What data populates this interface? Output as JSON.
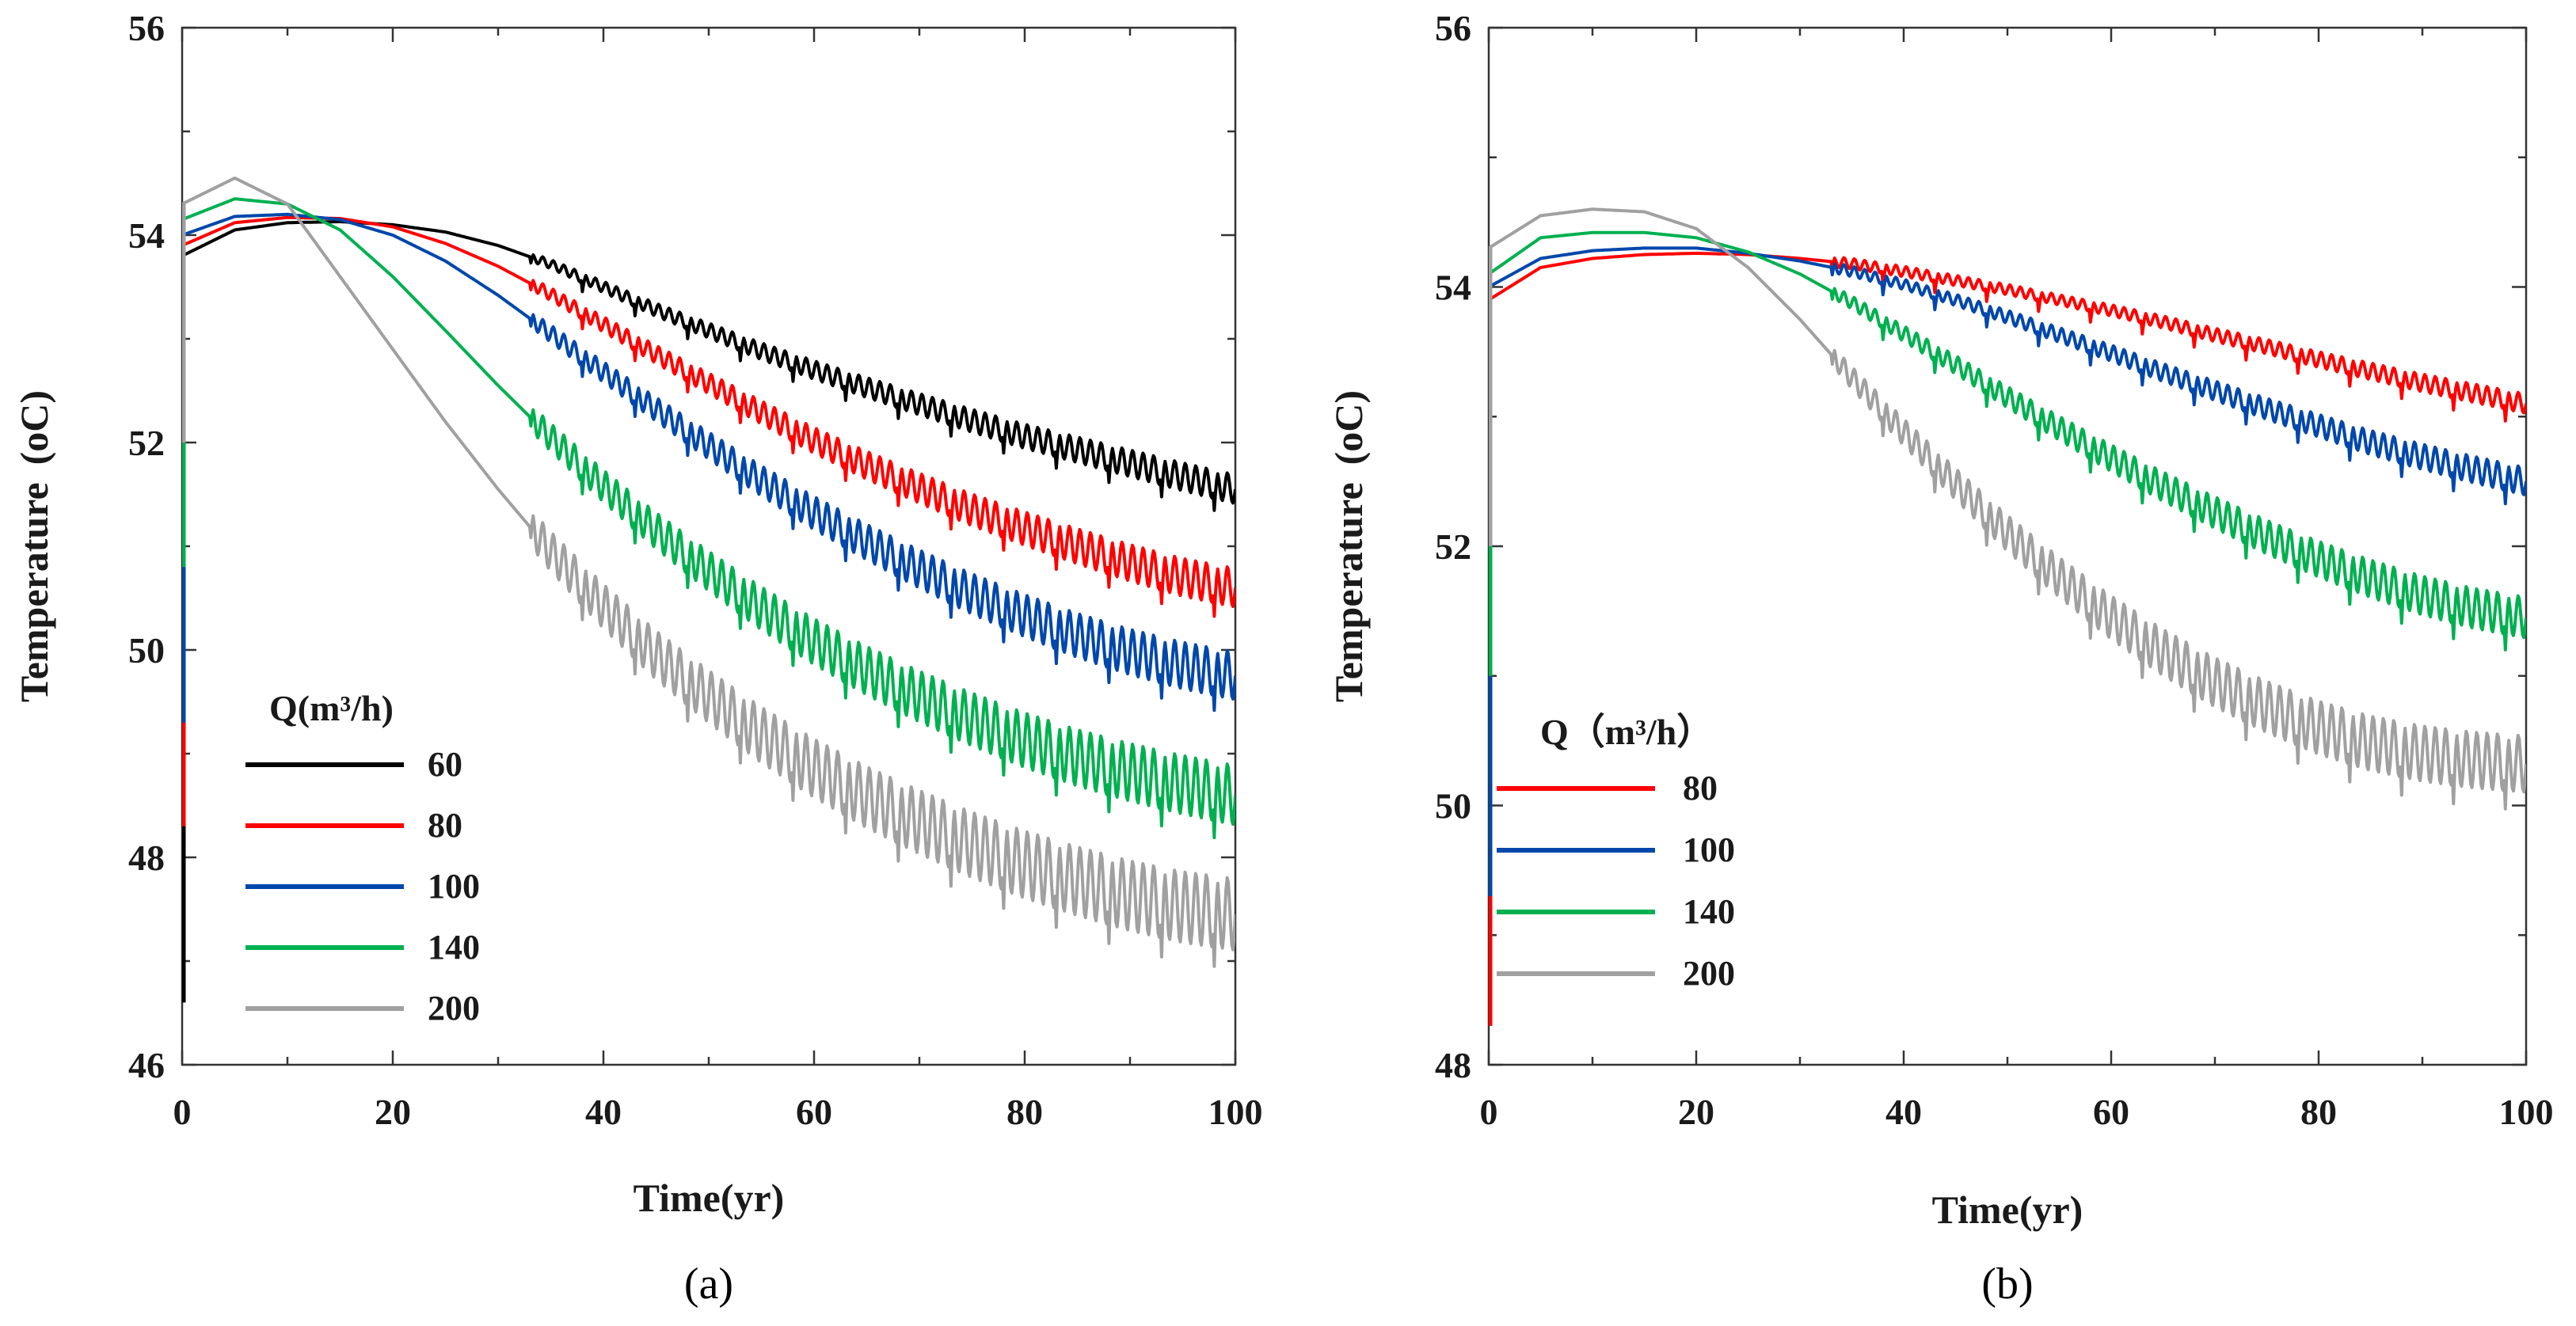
{
  "chart_data": [
    {
      "type": "line",
      "panel_label": "(a)",
      "xlabel": "Time(yr)",
      "ylabel": "Temperature",
      "ylabel_unit": "(oC)",
      "xlim": [
        0,
        100
      ],
      "ylim": [
        46,
        56
      ],
      "xticks": [
        0,
        20,
        40,
        60,
        80,
        100
      ],
      "yticks": [
        46,
        48,
        50,
        52,
        54,
        56
      ],
      "grid": false,
      "legend_title": "Q(m³/h)",
      "legend_position": "lower-left",
      "x": [
        0,
        5,
        10,
        15,
        20,
        25,
        30,
        35,
        40,
        45,
        50,
        55,
        60,
        65,
        70,
        75,
        80,
        85,
        90,
        95,
        100
      ],
      "series": [
        {
          "name": "60",
          "color": "#000000",
          "start_value": 46.6,
          "values": [
            53.8,
            54.05,
            54.12,
            54.13,
            54.1,
            54.03,
            53.9,
            53.72,
            53.5,
            53.28,
            53.08,
            52.88,
            52.7,
            52.53,
            52.37,
            52.21,
            52.06,
            51.93,
            51.8,
            51.67,
            51.55
          ]
        },
        {
          "name": "80",
          "color": "#ff0000",
          "start_value": 48.3,
          "values": [
            53.9,
            54.12,
            54.17,
            54.16,
            54.08,
            53.92,
            53.7,
            53.43,
            53.14,
            52.85,
            52.57,
            52.29,
            52.02,
            51.78,
            51.56,
            51.35,
            51.17,
            51.0,
            50.84,
            50.7,
            50.6
          ]
        },
        {
          "name": "100",
          "color": "#0047ab",
          "start_value": 49.3,
          "values": [
            54.0,
            54.18,
            54.2,
            54.15,
            54.0,
            53.75,
            53.42,
            53.05,
            52.68,
            52.32,
            51.97,
            51.63,
            51.32,
            51.04,
            50.78,
            50.54,
            50.33,
            50.14,
            49.98,
            49.85,
            49.75
          ]
        },
        {
          "name": "140",
          "color": "#00b050",
          "start_value": 50.8,
          "values": [
            54.15,
            54.35,
            54.3,
            54.05,
            53.6,
            53.08,
            52.55,
            52.05,
            51.58,
            51.15,
            50.76,
            50.4,
            50.08,
            49.8,
            49.55,
            49.33,
            49.13,
            48.96,
            48.82,
            48.7,
            48.6
          ]
        },
        {
          "name": "200",
          "color": "#a0a0a0",
          "start_value": 52.0,
          "values": [
            54.3,
            54.55,
            54.3,
            53.6,
            52.9,
            52.2,
            51.55,
            50.95,
            50.42,
            49.95,
            49.55,
            49.18,
            48.86,
            48.58,
            48.34,
            48.12,
            47.93,
            47.77,
            47.63,
            47.52,
            47.45
          ]
        }
      ]
    },
    {
      "type": "line",
      "panel_label": "(b)",
      "xlabel": "Time(yr)",
      "ylabel": "Temperature",
      "ylabel_unit": "(oC)",
      "xlim": [
        0,
        100
      ],
      "ylim": [
        48,
        56
      ],
      "xticks": [
        0,
        20,
        40,
        60,
        80,
        100
      ],
      "yticks": [
        48,
        50,
        52,
        54,
        56
      ],
      "grid": false,
      "legend_title": "Q（m³/h）",
      "legend_position": "lower-left",
      "x": [
        0,
        5,
        10,
        15,
        20,
        25,
        30,
        35,
        40,
        45,
        50,
        55,
        60,
        65,
        70,
        75,
        80,
        85,
        90,
        95,
        100
      ],
      "series": [
        {
          "name": "80",
          "color": "#ff0000",
          "start_value": 48.3,
          "values": [
            53.9,
            54.15,
            54.22,
            54.25,
            54.26,
            54.25,
            54.22,
            54.18,
            54.12,
            54.05,
            53.98,
            53.9,
            53.82,
            53.73,
            53.63,
            53.54,
            53.44,
            53.35,
            53.26,
            53.18,
            53.1
          ]
        },
        {
          "name": "100",
          "color": "#0047ab",
          "start_value": 49.3,
          "values": [
            54.0,
            54.22,
            54.28,
            54.3,
            54.3,
            54.26,
            54.2,
            54.12,
            54.02,
            53.9,
            53.77,
            53.63,
            53.49,
            53.34,
            53.2,
            53.06,
            52.93,
            52.8,
            52.69,
            52.59,
            52.5
          ]
        },
        {
          "name": "140",
          "color": "#00b050",
          "start_value": 51.0,
          "values": [
            54.1,
            54.38,
            54.42,
            54.42,
            54.38,
            54.27,
            54.1,
            53.88,
            53.64,
            53.4,
            53.15,
            52.91,
            52.68,
            52.46,
            52.26,
            52.07,
            51.9,
            51.75,
            51.62,
            51.52,
            51.45
          ]
        },
        {
          "name": "200",
          "color": "#a0a0a0",
          "start_value": 52.0,
          "values": [
            54.3,
            54.55,
            54.6,
            54.58,
            54.45,
            54.15,
            53.75,
            53.3,
            52.88,
            52.48,
            52.1,
            51.76,
            51.45,
            51.18,
            50.95,
            50.76,
            50.6,
            50.48,
            50.4,
            50.35,
            50.32
          ]
        }
      ]
    }
  ]
}
